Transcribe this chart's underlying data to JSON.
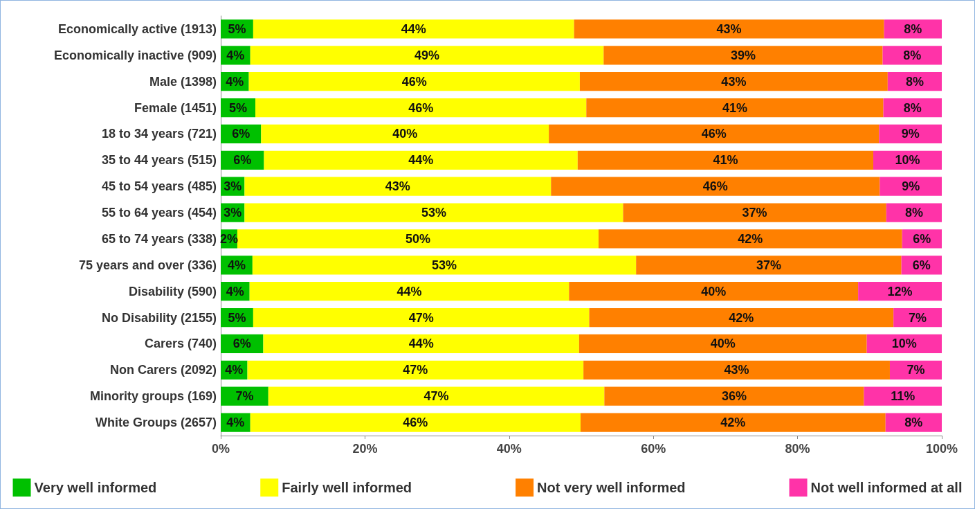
{
  "chart_data": {
    "type": "bar",
    "orientation": "horizontal",
    "stacked": true,
    "categories": [
      "Economically active (1913)",
      "Economically inactive (909)",
      "Male (1398)",
      "Female (1451)",
      "18 to 34 years (721)",
      "35 to 44 years (515)",
      "45 to 54 years (485)",
      "55 to 64 years (454)",
      "65 to 74 years (338)",
      "75 years and over (336)",
      "Disability (590)",
      "No Disability (2155)",
      "Carers (740)",
      "Non Carers (2092)",
      "Minority groups (169)",
      "White Groups (2657)"
    ],
    "series": [
      {
        "name": "Very well informed",
        "color": "#00c000",
        "values": [
          4.5,
          4.1,
          3.9,
          4.8,
          5.6,
          6.0,
          3.3,
          3.3,
          2.3,
          4.4,
          4.0,
          4.5,
          5.9,
          3.7,
          6.6,
          4.1
        ],
        "value_labels": [
          "5%",
          "4%",
          "4%",
          "5%",
          "6%",
          "6%",
          "3%",
          "3%",
          "2%",
          "4%",
          "4%",
          "5%",
          "6%",
          "4%",
          "7%",
          "4%"
        ]
      },
      {
        "name": "Fairly well informed",
        "color": "#ffff00",
        "values": [
          44.5,
          49.0,
          45.9,
          45.9,
          39.9,
          43.5,
          42.5,
          52.5,
          50.1,
          53.2,
          44.3,
          46.6,
          43.8,
          46.6,
          46.6,
          45.8
        ],
        "value_labels": [
          "44%",
          "49%",
          "46%",
          "46%",
          "40%",
          "44%",
          "43%",
          "53%",
          "50%",
          "53%",
          "44%",
          "47%",
          "44%",
          "47%",
          "47%",
          "46%"
        ]
      },
      {
        "name": "Not very well informed",
        "color": "#ff8000",
        "values": [
          43.0,
          38.7,
          42.7,
          41.2,
          45.8,
          41.0,
          45.6,
          36.5,
          42.1,
          36.8,
          40.1,
          42.2,
          39.9,
          42.5,
          36.0,
          42.3
        ],
        "value_labels": [
          "43%",
          "39%",
          "43%",
          "41%",
          "46%",
          "41%",
          "46%",
          "37%",
          "42%",
          "37%",
          "40%",
          "42%",
          "40%",
          "43%",
          "36%",
          "42%"
        ]
      },
      {
        "name": "Not well informed at all",
        "color": "#ff33a8",
        "values": [
          8.0,
          8.2,
          7.5,
          8.1,
          8.7,
          9.5,
          8.6,
          7.7,
          5.5,
          5.6,
          11.6,
          6.7,
          10.4,
          7.2,
          10.8,
          7.8
        ],
        "value_labels": [
          "8%",
          "8%",
          "8%",
          "8%",
          "9%",
          "10%",
          "9%",
          "8%",
          "6%",
          "6%",
          "12%",
          "7%",
          "10%",
          "7%",
          "11%",
          "8%"
        ]
      }
    ],
    "xlim": [
      0,
      100
    ],
    "xticks": [
      {
        "value": 0,
        "label": "0%"
      },
      {
        "value": 20,
        "label": "20%"
      },
      {
        "value": 40,
        "label": "40%"
      },
      {
        "value": 60,
        "label": "60%"
      },
      {
        "value": 80,
        "label": "80%"
      },
      {
        "value": 100,
        "label": "100%"
      }
    ],
    "grid": false,
    "legend": "bottom"
  }
}
